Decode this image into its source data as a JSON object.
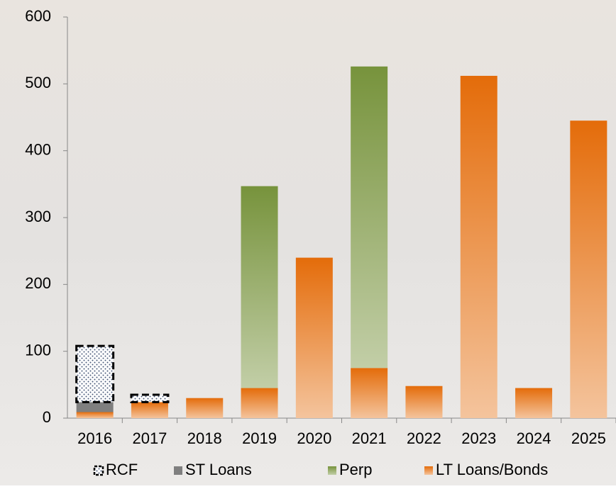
{
  "chart_data": {
    "type": "stacked_bar",
    "categories": [
      "2016",
      "2017",
      "2018",
      "2019",
      "2020",
      "2021",
      "2022",
      "2023",
      "2024",
      "2025"
    ],
    "series": [
      {
        "name": "RCF",
        "color": "#4a5a7a",
        "values": [
          84,
          11,
          0,
          0,
          0,
          0,
          0,
          0,
          0,
          0
        ]
      },
      {
        "name": "ST Loans",
        "color": "#7f7f7f",
        "values": [
          15,
          0,
          0,
          0,
          0,
          0,
          0,
          0,
          0,
          0
        ]
      },
      {
        "name": "Perp",
        "color": "#77933c",
        "values": [
          0,
          0,
          0,
          302,
          0,
          451,
          0,
          0,
          0,
          0
        ]
      },
      {
        "name": "LT Loans/Bonds",
        "color": "#e46c0a",
        "values": [
          9,
          24,
          30,
          45,
          240,
          75,
          48,
          512,
          45,
          445
        ]
      }
    ],
    "ylim": [
      0,
      600
    ],
    "yticks": [
      0,
      100,
      200,
      300,
      400,
      500,
      600
    ],
    "legend": "bottom"
  }
}
